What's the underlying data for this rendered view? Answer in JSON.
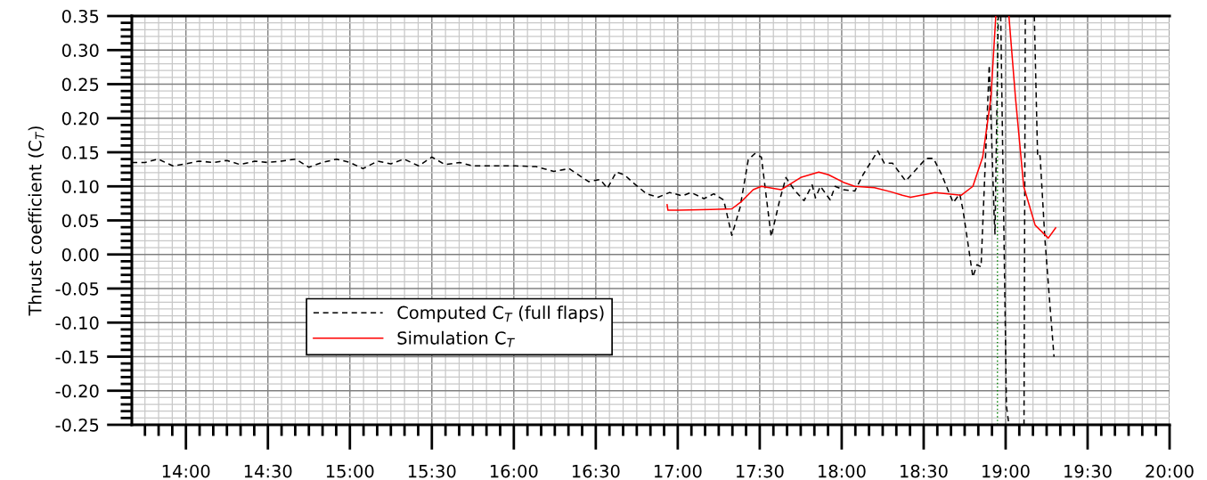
{
  "chart_data": {
    "type": "line",
    "ylabel": "Thrust coefficient (C$_{T}$)",
    "xlim": [
      13.67,
      20
    ],
    "xticks": [
      {
        "value": 14,
        "label": "14:00"
      },
      {
        "value": 14.5,
        "label": "14:30"
      },
      {
        "value": 15,
        "label": "15:00"
      },
      {
        "value": 15.5,
        "label": "15:30"
      },
      {
        "value": 16,
        "label": "16:00"
      },
      {
        "value": 16.5,
        "label": "16:30"
      },
      {
        "value": 17,
        "label": "17:00"
      },
      {
        "value": 17.5,
        "label": "17:30"
      },
      {
        "value": 18,
        "label": "18:00"
      },
      {
        "value": 18.5,
        "label": "18:30"
      },
      {
        "value": 19,
        "label": "19:00"
      },
      {
        "value": 19.5,
        "label": "19:30"
      },
      {
        "value": 20,
        "label": "20:00"
      }
    ],
    "ylim": [
      -0.25,
      0.35
    ],
    "yticks": [
      {
        "value": -0.25,
        "label": "-0.25"
      },
      {
        "value": -0.2,
        "label": "-0.20"
      },
      {
        "value": -0.15,
        "label": "-0.15"
      },
      {
        "value": -0.1,
        "label": "-0.10"
      },
      {
        "value": -0.05,
        "label": "-0.05"
      },
      {
        "value": 0,
        "label": "0.00"
      },
      {
        "value": 0.05,
        "label": "0.05"
      },
      {
        "value": 0.1,
        "label": "0.10"
      },
      {
        "value": 0.15,
        "label": "0.15"
      },
      {
        "value": 0.2,
        "label": "0.20"
      },
      {
        "value": 0.25,
        "label": "0.25"
      },
      {
        "value": 0.3,
        "label": "0.30"
      },
      {
        "value": 0.35,
        "label": "0.35"
      }
    ],
    "grid": true,
    "legend": "bottom left",
    "marker": "none",
    "ref_lines": [
      {
        "axis": "x",
        "value": 18.95,
        "color": "#008000",
        "line_style": "dotted"
      }
    ],
    "series": [
      {
        "name": "Computed C$_{T}$ (full flaps)",
        "color": "#000000",
        "line_style": "dashed",
        "x": [
          13.67,
          13.75,
          13.83,
          13.92,
          14.0,
          14.08,
          14.17,
          14.25,
          14.33,
          14.42,
          14.5,
          14.58,
          14.67,
          14.75,
          14.83,
          14.92,
          15.0,
          15.08,
          15.17,
          15.25,
          15.33,
          15.42,
          15.5,
          15.58,
          15.67,
          15.75,
          15.83,
          15.92,
          16.01,
          16.135,
          16.244,
          16.337,
          16.456,
          16.527,
          16.571,
          16.625,
          16.674,
          16.734,
          16.81,
          16.88,
          16.95,
          17.03,
          17.08,
          17.16,
          17.22,
          17.28,
          17.33,
          17.38,
          17.43,
          17.47,
          17.51,
          17.57,
          17.62,
          17.66,
          17.71,
          17.77,
          17.82,
          17.84,
          17.87,
          17.93,
          17.96,
          18.01,
          18.08,
          18.13,
          18.22,
          18.26,
          18.31,
          18.39,
          18.44,
          18.515,
          18.56,
          18.61,
          18.68,
          18.72,
          18.74,
          18.78,
          18.8,
          18.825,
          18.85,
          18.9,
          18.93,
          18.935,
          18.955,
          18.96,
          18.97,
          19.005,
          19.02,
          19.1,
          19.112,
          19.12,
          19.15,
          19.175,
          19.195,
          19.21,
          19.24,
          19.27,
          19.295
        ],
        "values": [
          0.135,
          0.135,
          0.14,
          0.13,
          0.133,
          0.137,
          0.135,
          0.138,
          0.132,
          0.137,
          0.135,
          0.137,
          0.14,
          0.128,
          0.135,
          0.14,
          0.135,
          0.126,
          0.137,
          0.133,
          0.14,
          0.13,
          0.143,
          0.132,
          0.135,
          0.13,
          0.13,
          0.13,
          0.13,
          0.129,
          0.122,
          0.126,
          0.107,
          0.11,
          0.097,
          0.121,
          0.117,
          0.104,
          0.089,
          0.084,
          0.091,
          0.086,
          0.091,
          0.082,
          0.089,
          0.08,
          0.028,
          0.069,
          0.139,
          0.148,
          0.143,
          0.026,
          0.078,
          0.113,
          0.095,
          0.079,
          0.102,
          0.083,
          0.1,
          0.08,
          0.1,
          0.095,
          0.093,
          0.117,
          0.152,
          0.134,
          0.134,
          0.108,
          0.121,
          0.141,
          0.141,
          0.117,
          0.076,
          0.089,
          0.065,
          0.0,
          -0.033,
          -0.015,
          -0.018,
          0.278,
          0.056,
          0.03,
          0.35,
          null,
          0.35,
          -0.223,
          -0.25,
          null,
          -0.25,
          0.35,
          null,
          0.35,
          0.143,
          0.145,
          0.021,
          -0.074,
          -0.15
        ]
      },
      {
        "name": "Simulation C$_{T}$",
        "color": "#ff0000",
        "line_style": "solid",
        "x": [
          16.935,
          16.94,
          17.0,
          17.2,
          17.33,
          17.39,
          17.46,
          17.51,
          17.63,
          17.75,
          17.86,
          17.92,
          18.01,
          18.08,
          18.2,
          18.3,
          18.37,
          18.42,
          18.57,
          18.73,
          18.8,
          18.86,
          18.91,
          18.94,
          18.98,
          19.02,
          19.06,
          19.11,
          19.18,
          19.26,
          19.305
        ],
        "values": [
          0.073,
          0.065,
          0.065,
          0.066,
          0.067,
          0.078,
          0.095,
          0.1,
          0.095,
          0.113,
          0.121,
          0.117,
          0.106,
          0.1,
          0.098,
          0.092,
          0.087,
          0.084,
          0.091,
          0.087,
          0.1,
          0.143,
          0.23,
          0.35,
          null,
          0.35,
          0.23,
          0.1,
          0.043,
          0.024,
          0.039
        ]
      }
    ]
  }
}
